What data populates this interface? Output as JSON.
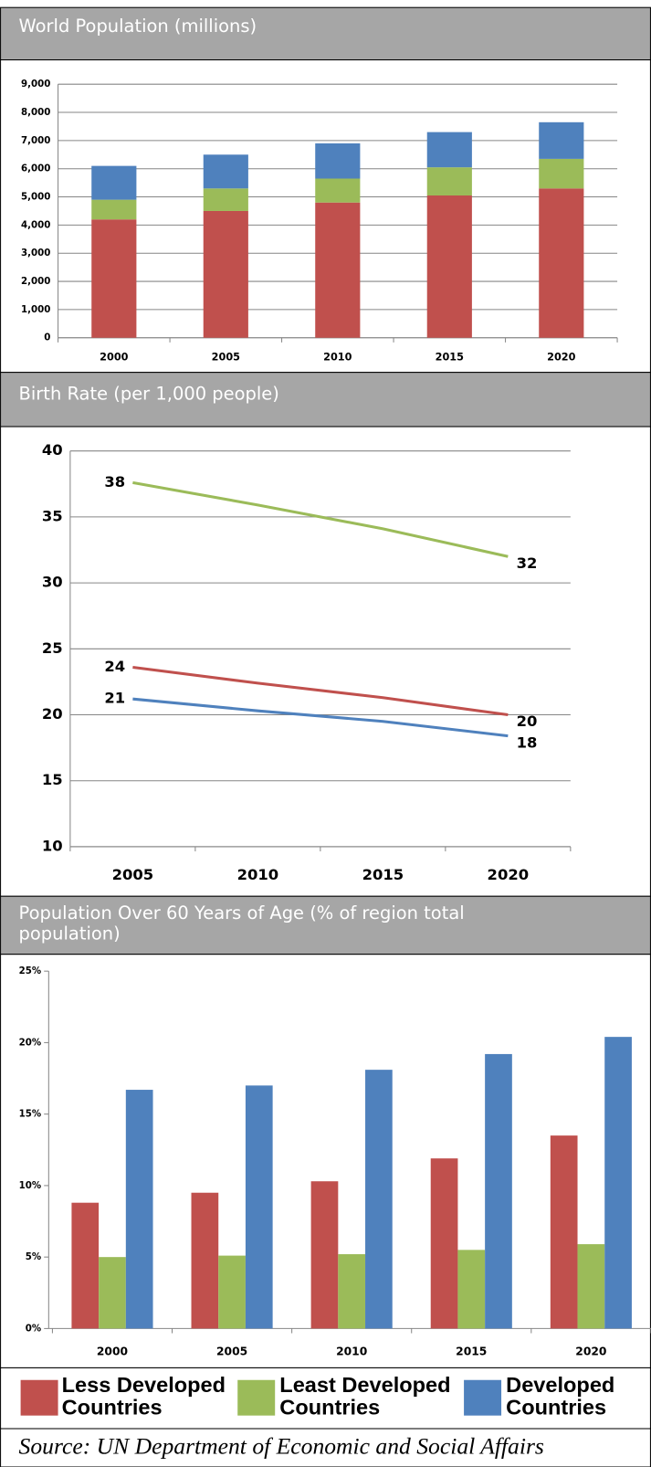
{
  "chart_data": [
    {
      "type": "stacked_bar",
      "title": "World Population (millions)",
      "categories": [
        "2000",
        "2005",
        "2010",
        "2015",
        "2020"
      ],
      "series": [
        {
          "color": "#c0504d",
          "values": [
            4200,
            4500,
            4800,
            5050,
            5300
          ]
        },
        {
          "color": "#9bbb59",
          "values": [
            700,
            800,
            850,
            1000,
            1050
          ]
        },
        {
          "color": "#4f81bd",
          "values": [
            1200,
            1200,
            1250,
            1250,
            1300
          ]
        }
      ],
      "ylim": [
        0,
        9000
      ],
      "yticks": [
        0,
        {
          "value": 1000,
          "label": "1,000"
        },
        {
          "value": 2000,
          "label": "2,000"
        },
        {
          "value": 3000,
          "label": "3,000"
        },
        {
          "value": 4000,
          "label": "4,000"
        },
        {
          "value": 5000,
          "label": "5,000"
        },
        {
          "value": 6000,
          "label": "6,000"
        },
        {
          "value": 7000,
          "label": "7,000"
        },
        {
          "value": 8000,
          "label": "8,000"
        },
        {
          "value": 9000,
          "label": "9,000"
        }
      ],
      "grid": true
    },
    {
      "type": "line",
      "title": "Birth Rate (per 1,000 people)",
      "categories": [
        "2005",
        "2010",
        "2015",
        "2020"
      ],
      "series": [
        {
          "color": "#9bbb59",
          "values": [
            37.6,
            35.9,
            34.1,
            32.0
          ],
          "value_labels": [
            "38",
            null,
            null,
            "32"
          ]
        },
        {
          "color": "#c0504d",
          "values": [
            23.6,
            22.4,
            21.3,
            20.0
          ],
          "value_labels": [
            "24",
            null,
            null,
            "20"
          ]
        },
        {
          "color": "#4f81bd",
          "values": [
            21.2,
            20.3,
            19.5,
            18.4
          ],
          "value_labels": [
            "21",
            null,
            null,
            "18"
          ]
        }
      ],
      "ylim": [
        10,
        40
      ],
      "yticks": [
        10,
        15,
        20,
        25,
        30,
        35,
        40
      ],
      "grid": true
    },
    {
      "type": "bar",
      "title": "Population Over 60 Years of Age (% of region total population)",
      "categories": [
        "2000",
        "2005",
        "2010",
        "2015",
        "2020"
      ],
      "series": [
        {
          "name": "Less Developed Countries",
          "color": "#c0504d",
          "values": [
            8.8,
            9.5,
            10.3,
            11.9,
            13.5
          ]
        },
        {
          "name": "Least Developed Countries",
          "color": "#9bbb59",
          "values": [
            5.0,
            5.1,
            5.2,
            5.5,
            5.9
          ]
        },
        {
          "name": "Developed Countries",
          "color": "#4f81bd",
          "values": [
            16.7,
            17.0,
            18.1,
            19.2,
            20.4
          ]
        }
      ],
      "ylim": [
        0,
        25
      ],
      "yticks": [
        {
          "value": 0,
          "label": "0%"
        },
        {
          "value": 5,
          "label": "5%"
        },
        {
          "value": 10,
          "label": "10%"
        },
        {
          "value": 15,
          "label": "15%"
        },
        {
          "value": 20,
          "label": "20%"
        },
        {
          "value": 25,
          "label": "25%"
        }
      ],
      "grid": false
    }
  ],
  "source": "Source: UN Department of Economic and Social Affairs"
}
